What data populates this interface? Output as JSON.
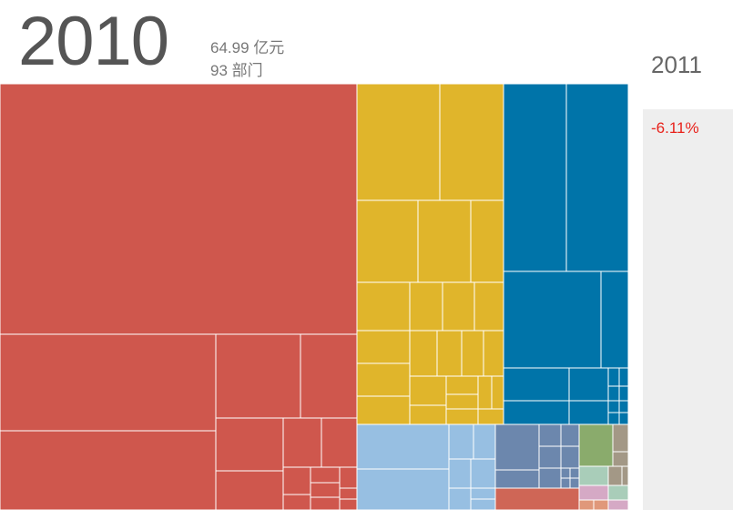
{
  "header": {
    "year": "2010",
    "total": "64.99 亿元",
    "departments": "93 部门",
    "next_year": "2011",
    "change": "-6.11%"
  },
  "colors": {
    "red": "#cf574d",
    "yellow": "#e0b52b",
    "blue": "#0074a9",
    "lightblue": "#97bfe2",
    "slate": "#6c87ad",
    "salmon": "#cf6656",
    "green": "#8aab6c",
    "mint": "#a9cdb9",
    "pink": "#d5a9c5",
    "taupe": "#a39886",
    "peach": "#e0987a",
    "side_panel": "#eeeeee",
    "negative_change": "#e8221b"
  },
  "chart_data": {
    "type": "treemap",
    "title": "2010",
    "total": "64.99 亿元",
    "department_count": 93,
    "groups": [
      {
        "group": "red",
        "share": 0.56
      },
      {
        "group": "yellow",
        "share": 0.17
      },
      {
        "group": "blue",
        "share": 0.13
      },
      {
        "group": "lightblue",
        "share": 0.06
      },
      {
        "group": "slate",
        "share": 0.04
      },
      {
        "group": "salmon",
        "share": 0.02
      },
      {
        "group": "green",
        "share": 0.01
      },
      {
        "group": "other",
        "share": 0.01
      }
    ]
  }
}
